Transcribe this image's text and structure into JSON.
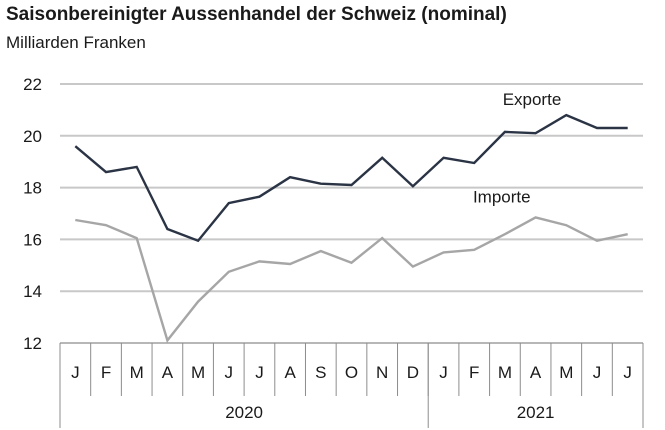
{
  "chart_data": {
    "type": "line",
    "title": "Saisonbereinigter Aussenhandel der Schweiz (nominal)",
    "subtitle": "Milliarden Franken",
    "categories": [
      "J",
      "F",
      "M",
      "A",
      "M",
      "J",
      "J",
      "A",
      "S",
      "O",
      "N",
      "D",
      "J",
      "F",
      "M",
      "A",
      "M",
      "J",
      "J"
    ],
    "years": [
      {
        "label": "2020",
        "span": 12
      },
      {
        "label": "2021",
        "span": 7
      }
    ],
    "ylim": [
      12,
      22
    ],
    "yticks": [
      12,
      14,
      16,
      18,
      20,
      22
    ],
    "grid": true,
    "series": [
      {
        "name": "Exporte",
        "color": "#2b3445",
        "values": [
          19.6,
          18.6,
          18.8,
          16.4,
          15.95,
          17.4,
          17.65,
          18.4,
          18.15,
          18.1,
          19.15,
          18.05,
          19.15,
          18.95,
          20.15,
          20.1,
          20.8,
          20.3,
          20.3
        ]
      },
      {
        "name": "Importe",
        "color": "#a6a6a6",
        "values": [
          16.75,
          16.55,
          16.05,
          12.1,
          13.6,
          14.75,
          15.15,
          15.05,
          15.55,
          15.1,
          16.05,
          14.95,
          15.5,
          15.6,
          16.2,
          16.85,
          16.55,
          15.95,
          16.2
        ]
      }
    ]
  }
}
